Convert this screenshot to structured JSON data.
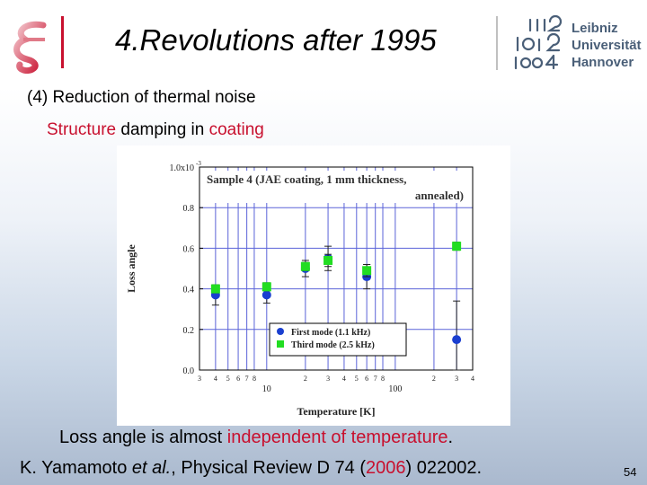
{
  "slide": {
    "title": "4.Revolutions after 1995",
    "university": [
      "Leibniz",
      "Universität",
      "Hannover"
    ],
    "heading": "(4) Reduction of thermal noise",
    "subheading": {
      "part1": "Structure",
      "part2": " damping in ",
      "part3": "coating"
    },
    "caption": {
      "part1": "Loss angle is almost ",
      "part2": "independent of temperature",
      "part3": "."
    },
    "reference": {
      "part1": "K. Yamamoto ",
      "part2": "et al.",
      "part3": ", Physical Review D 74 (",
      "part4": "2006",
      "part5": ") 022002."
    },
    "page_number": "54"
  },
  "colors": {
    "accent_red": "#c8102e",
    "first_mode": "#1a3fd0",
    "third_mode": "#22dd22",
    "grid": "#5a63d8"
  },
  "chart_data": {
    "type": "scatter",
    "title": "Sample 4 (JAE coating, 1 mm thickness, annealed)",
    "xlabel": "Temperature [K]",
    "ylabel": "Loss angle",
    "y_multiplier": "1.0x10",
    "y_exponent": "-3",
    "x_scale": "log",
    "xlim": [
      3,
      400
    ],
    "ylim": [
      0,
      1.0
    ],
    "y_ticks": [
      "0.0",
      "0.2",
      "0.4",
      "0.6",
      "0.8"
    ],
    "x_major_ticks": [
      {
        "v": 10,
        "label": "10"
      },
      {
        "v": 100,
        "label": "100"
      }
    ],
    "x_minor_ticks": [
      {
        "v": 3,
        "label": "3"
      },
      {
        "v": 4,
        "label": "4"
      },
      {
        "v": 5,
        "label": "5"
      },
      {
        "v": 6,
        "label": "6"
      },
      {
        "v": 7,
        "label": "7"
      },
      {
        "v": 8,
        "label": "8"
      },
      {
        "v": 20,
        "label": "2"
      },
      {
        "v": 30,
        "label": "3"
      },
      {
        "v": 40,
        "label": "4"
      },
      {
        "v": 50,
        "label": "5"
      },
      {
        "v": 60,
        "label": "6"
      },
      {
        "v": 70,
        "label": "7"
      },
      {
        "v": 80,
        "label": "8"
      },
      {
        "v": 200,
        "label": "2"
      },
      {
        "v": 300,
        "label": "3"
      },
      {
        "v": 400,
        "label": "4"
      }
    ],
    "grid": true,
    "legend_position": "bottom-right",
    "series": [
      {
        "name": "First mode (1.1 kHz)",
        "marker": "circle",
        "points": [
          {
            "x": 4,
            "y": 0.37,
            "err": 0.05
          },
          {
            "x": 10,
            "y": 0.37,
            "err": 0.04
          },
          {
            "x": 20,
            "y": 0.5,
            "err": 0.04
          },
          {
            "x": 30,
            "y": 0.55,
            "err": 0.06
          },
          {
            "x": 60,
            "y": 0.46,
            "err": 0.06
          },
          {
            "x": 300,
            "y": 0.15,
            "err": 0.19
          }
        ]
      },
      {
        "name": "Third mode (2.5 kHz)",
        "marker": "square",
        "points": [
          {
            "x": 4,
            "y": 0.4,
            "err": 0.02
          },
          {
            "x": 10,
            "y": 0.41,
            "err": 0.02
          },
          {
            "x": 20,
            "y": 0.51,
            "err": 0.02
          },
          {
            "x": 30,
            "y": 0.54,
            "err": 0.03
          },
          {
            "x": 60,
            "y": 0.49,
            "err": 0.03
          },
          {
            "x": 300,
            "y": 0.61,
            "err": 0.02
          }
        ]
      }
    ]
  }
}
